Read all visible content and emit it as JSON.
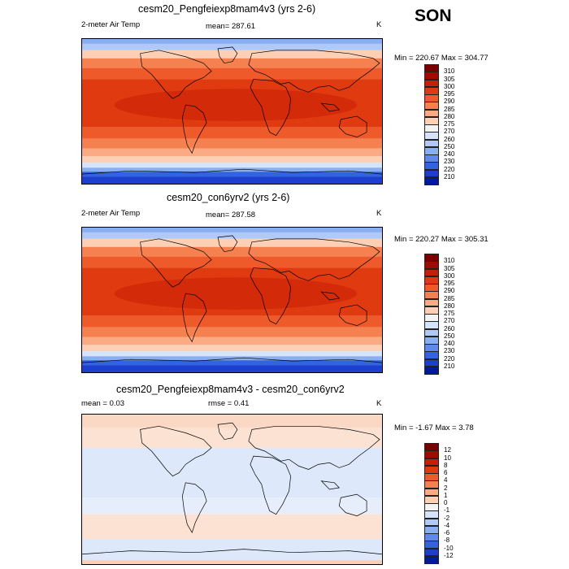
{
  "season": "SON",
  "panels": [
    {
      "title": "cesm20_Pengfeiexp8mam4v3 (yrs 2-6)",
      "left_label": "2-meter Air Temp",
      "center_label": "mean= 287.61",
      "right_label": "K",
      "minmax": "Min = 220.67 Max = 304.77",
      "colorbar_labels": [
        "310",
        "305",
        "300",
        "295",
        "290",
        "285",
        "280",
        "275",
        "270",
        "260",
        "250",
        "240",
        "230",
        "220",
        "210"
      ],
      "colorbar_colors": [
        "#7a0000",
        "#a10a00",
        "#c81e03",
        "#e03a10",
        "#ef5a2a",
        "#f58050",
        "#fbaa84",
        "#fdd0b6",
        "#f3f3f3",
        "#d6e4fb",
        "#b0c9f6",
        "#8aaef2",
        "#5f89ea",
        "#3364e0",
        "#1c3fd0",
        "#001a9c"
      ]
    },
    {
      "title": "cesm20_con6yrv2 (yrs 2-6)",
      "left_label": "2-meter Air Temp",
      "center_label": "mean= 287.58",
      "right_label": "K",
      "minmax": "Min = 220.27 Max = 305.31",
      "colorbar_labels": [
        "310",
        "305",
        "300",
        "295",
        "290",
        "285",
        "280",
        "275",
        "270",
        "260",
        "250",
        "240",
        "230",
        "220",
        "210"
      ],
      "colorbar_colors": [
        "#7a0000",
        "#a10a00",
        "#c81e03",
        "#e03a10",
        "#ef5a2a",
        "#f58050",
        "#fbaa84",
        "#fdd0b6",
        "#f3f3f3",
        "#d6e4fb",
        "#b0c9f6",
        "#8aaef2",
        "#5f89ea",
        "#3364e0",
        "#1c3fd0",
        "#001a9c"
      ]
    },
    {
      "title": "cesm20_Pengfeiexp8mam4v3 - cesm20_con6yrv2",
      "left_label": "mean =   0.03",
      "center_label": "rmse =   0.41",
      "right_label": "K",
      "minmax": "Min =  -1.67 Max =   3.78",
      "colorbar_labels": [
        "12",
        "10",
        "8",
        "6",
        "4",
        "2",
        "1",
        "0",
        "-1",
        "-2",
        "-4",
        "-6",
        "-8",
        "-10",
        "-12"
      ],
      "colorbar_colors": [
        "#7a0000",
        "#a10a00",
        "#c81e03",
        "#e03a10",
        "#ef5a2a",
        "#f58050",
        "#fbaa84",
        "#fdd0b6",
        "#f3f3f3",
        "#d6e4fb",
        "#b0c9f6",
        "#8aaef2",
        "#5f89ea",
        "#3364e0",
        "#1c3fd0",
        "#001a9c"
      ]
    }
  ]
}
